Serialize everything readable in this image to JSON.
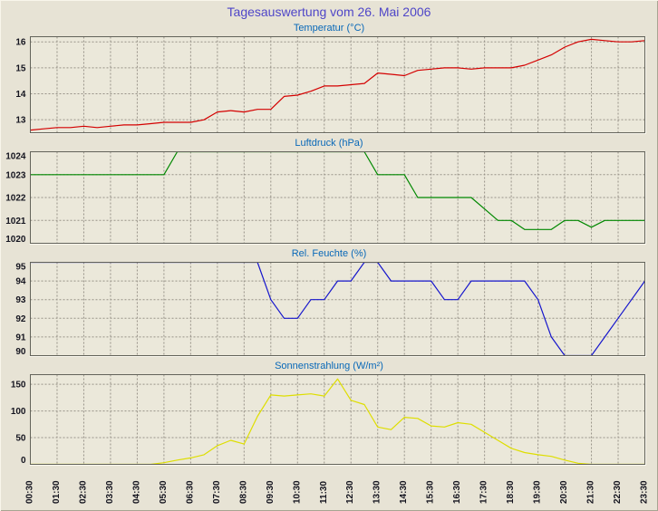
{
  "window": {
    "title": "Tagesauswertung vom 26. Mai 2006"
  },
  "colors": {
    "background": "#e7e3d5",
    "plot_background": "#ebe8da",
    "main_title": "#4f46c8",
    "chart_title": "#0868b8",
    "grid": "#979288",
    "axis_text": "#14141f",
    "plot_border": "#63635a",
    "plot_highlight": "#faf8ef"
  },
  "x_axis": {
    "start_hour": 0.5,
    "end_hour": 23.5,
    "labels": [
      "00:30",
      "01:30",
      "02:30",
      "03:30",
      "04:30",
      "05:30",
      "06:30",
      "07:30",
      "08:30",
      "09:30",
      "10:30",
      "11:30",
      "12:30",
      "13:30",
      "14:30",
      "15:30",
      "16:30",
      "17:30",
      "18:30",
      "19:30",
      "20:30",
      "21:30",
      "22:30",
      "23:30"
    ]
  },
  "chart_data": [
    {
      "type": "line",
      "title": "Temperatur (°C)",
      "color": "#d40000",
      "ylim": [
        12.5,
        16.2
      ],
      "yticks": [
        13,
        14,
        15,
        16
      ],
      "x_start_hour": 0.5,
      "x_step_hours": 0.5,
      "grid": "dashed",
      "values": [
        12.6,
        12.65,
        12.7,
        12.7,
        12.75,
        12.7,
        12.75,
        12.8,
        12.8,
        12.85,
        12.9,
        12.9,
        12.9,
        13.0,
        13.3,
        13.35,
        13.3,
        13.4,
        13.4,
        13.9,
        13.95,
        14.1,
        14.3,
        14.3,
        14.35,
        14.4,
        14.8,
        14.75,
        14.7,
        14.9,
        14.95,
        15.0,
        15.0,
        14.95,
        15.0,
        15.0,
        15.0,
        15.1,
        15.3,
        15.5,
        15.8,
        16.0,
        16.1,
        16.05,
        16.0,
        16.0,
        16.05
      ]
    },
    {
      "type": "line",
      "title": "Luftdruck (hPa)",
      "color": "#008800",
      "ylim": [
        1020,
        1024
      ],
      "yticks": [
        1020,
        1021,
        1022,
        1023,
        1024
      ],
      "x_start_hour": 0.5,
      "x_step_hours": 0.5,
      "grid": "dashed",
      "values": [
        1023,
        1023,
        1023,
        1023,
        1023,
        1023,
        1023,
        1023,
        1023,
        1023,
        1023,
        1024,
        1024,
        1024,
        1024,
        1024,
        1024,
        1024,
        1024,
        1024,
        1024,
        1024,
        1024,
        1024,
        1024,
        1024,
        1023,
        1023,
        1023,
        1022,
        1022,
        1022,
        1022,
        1022,
        1021.5,
        1021,
        1021,
        1020.6,
        1020.6,
        1020.6,
        1021,
        1021,
        1020.7,
        1021,
        1021,
        1021,
        1021
      ]
    },
    {
      "type": "line",
      "title": "Rel. Feuchte (%)",
      "color": "#1515cc",
      "ylim": [
        90,
        95
      ],
      "yticks": [
        90,
        91,
        92,
        93,
        94,
        95
      ],
      "x_start_hour": 0.5,
      "x_step_hours": 0.5,
      "grid": "dashed",
      "values": [
        95,
        95,
        95,
        95,
        95,
        95,
        95,
        95,
        95,
        95,
        95,
        95,
        95,
        95,
        95,
        95,
        95,
        95,
        93,
        92,
        92,
        93,
        93,
        94,
        94,
        95,
        95,
        94,
        94,
        94,
        94,
        93,
        93,
        94,
        94,
        94,
        94,
        94,
        93,
        91,
        90,
        90,
        90,
        91,
        92,
        93,
        94
      ]
    },
    {
      "type": "line",
      "title": "Sonnenstrahlung (W/m²)",
      "color": "#dede00",
      "ylim": [
        0,
        168
      ],
      "yticks": [
        0,
        50,
        100,
        150
      ],
      "x_start_hour": 0.5,
      "x_step_hours": 0.5,
      "grid": "dashed",
      "values": [
        0,
        0,
        0,
        0,
        0,
        0,
        0,
        0,
        0,
        0,
        3,
        8,
        12,
        18,
        35,
        45,
        38,
        90,
        130,
        128,
        130,
        132,
        128,
        160,
        120,
        112,
        70,
        65,
        88,
        86,
        72,
        70,
        78,
        75,
        60,
        45,
        30,
        22,
        18,
        15,
        8,
        2,
        0,
        0,
        0,
        0,
        0
      ]
    }
  ]
}
